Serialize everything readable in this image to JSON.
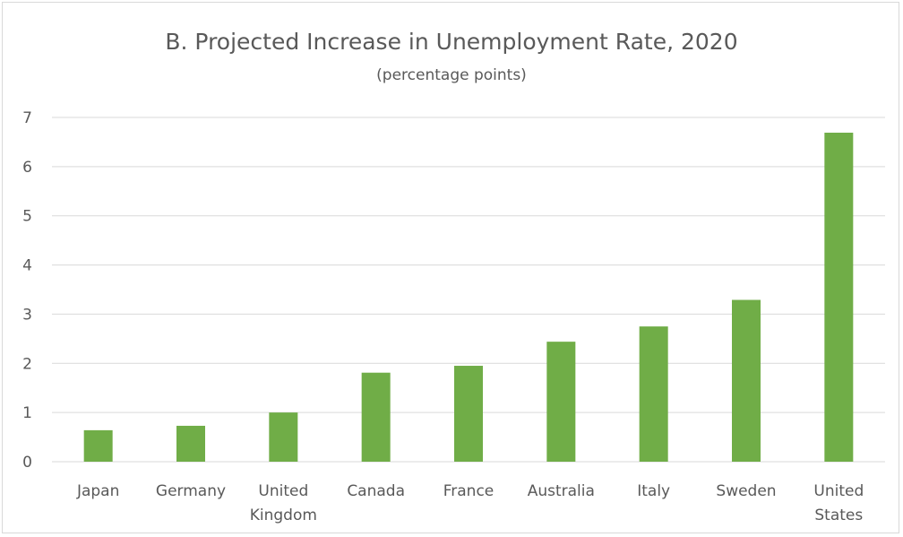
{
  "chart_data": {
    "type": "bar",
    "title": "B. Projected Increase in Unemployment Rate, 2020",
    "subtitle": "(percentage points)",
    "categories": [
      [
        "Japan"
      ],
      [
        "Germany"
      ],
      [
        "United",
        "Kingdom"
      ],
      [
        "Canada"
      ],
      [
        "France"
      ],
      [
        "Australia"
      ],
      [
        "Italy"
      ],
      [
        "Sweden"
      ],
      [
        "United",
        "States"
      ]
    ],
    "values": [
      0.64,
      0.73,
      1.0,
      1.81,
      1.95,
      2.44,
      2.75,
      3.29,
      6.69
    ],
    "ylim": [
      0,
      7
    ],
    "yticks": [
      0,
      1,
      2,
      3,
      4,
      5,
      6,
      7
    ],
    "grid": true,
    "legend": "none",
    "bar_color": "#70ad47"
  }
}
